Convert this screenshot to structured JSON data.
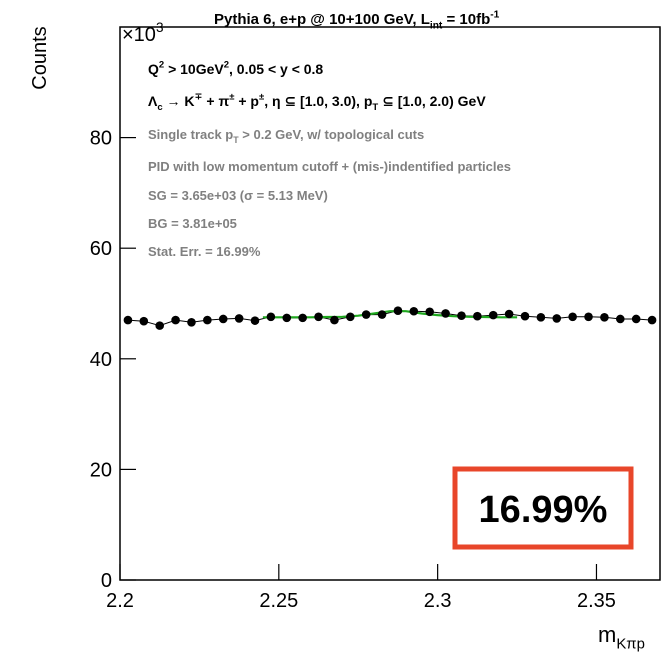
{
  "chart_data": {
    "type": "scatter",
    "title": [
      {
        "text": "Pythia 6, e+p @ 10+100 GeV, L"
      },
      {
        "text": "int",
        "shift": "sub"
      },
      {
        "text": " = 10fb"
      },
      {
        "text": "-1",
        "shift": "sup"
      }
    ],
    "y_exponent": [
      {
        "text": "×10"
      },
      {
        "text": "3",
        "shift": "sup"
      }
    ],
    "ylabel": "Counts",
    "xlabel": [
      {
        "text": "m"
      },
      {
        "text": "Kπp",
        "shift": "sub"
      }
    ],
    "annotations": [
      {
        "color": "#000000",
        "segments": [
          {
            "text": "Q"
          },
          {
            "text": "2",
            "shift": "sup"
          },
          {
            "text": " > 10GeV"
          },
          {
            "text": "2",
            "shift": "sup"
          },
          {
            "text": ", 0.05 < y < 0.8"
          }
        ]
      },
      {
        "color": "#000000",
        "segments": [
          {
            "text": "Λ"
          },
          {
            "text": "c",
            "shift": "sub"
          },
          {
            "text": " → K"
          },
          {
            "text": "∓",
            "shift": "sup"
          },
          {
            "text": " + π"
          },
          {
            "text": "±",
            "shift": "sup"
          },
          {
            "text": " + p"
          },
          {
            "text": "±",
            "shift": "sup"
          },
          {
            "text": ", η ⊆ [1.0, 3.0), p"
          },
          {
            "text": "T",
            "shift": "sub"
          },
          {
            "text": " ⊆ [1.0, 2.0) GeV"
          }
        ]
      },
      {
        "color": "#808080",
        "segments": [
          {
            "text": "Single track p"
          },
          {
            "text": "T",
            "shift": "sub"
          },
          {
            "text": " > 0.2 GeV, w/ topological cuts"
          }
        ]
      },
      {
        "color": "#808080",
        "segments": [
          {
            "text": "PID with low momentum cutoff + (mis-)indentified particles"
          }
        ]
      },
      {
        "color": "#808080",
        "segments": [
          {
            "text": "SG = 3.65e+03 (σ = 5.13 MeV)"
          }
        ]
      },
      {
        "color": "#808080",
        "segments": [
          {
            "text": "BG = 3.81e+05"
          }
        ]
      },
      {
        "color": "#808080",
        "segments": [
          {
            "text": "Stat. Err. = 16.99%"
          }
        ]
      }
    ],
    "highlight": {
      "text": "16.99%",
      "color": "#e8462a"
    },
    "color": "#000000",
    "x": [
      2.2025,
      2.2075,
      2.2125,
      2.2175,
      2.2225,
      2.2275,
      2.2325,
      2.2375,
      2.2425,
      2.2475,
      2.2525,
      2.2575,
      2.2625,
      2.2675,
      2.2725,
      2.2775,
      2.2825,
      2.2875,
      2.2925,
      2.2975,
      2.3025,
      2.3075,
      2.3125,
      2.3175,
      2.3225,
      2.3275,
      2.3325,
      2.3375,
      2.3425,
      2.3475,
      2.3525,
      2.3575,
      2.3625,
      2.3675
    ],
    "values": [
      47.0,
      46.8,
      46.0,
      47.0,
      46.6,
      47.0,
      47.2,
      47.3,
      46.9,
      47.6,
      47.4,
      47.4,
      47.6,
      47.0,
      47.6,
      48.0,
      48.0,
      48.7,
      48.6,
      48.5,
      48.2,
      47.8,
      47.7,
      47.9,
      48.1,
      47.7,
      47.5,
      47.3,
      47.6,
      47.6,
      47.5,
      47.2,
      47.2,
      47.0
    ],
    "fit": {
      "color": "#1fa81f",
      "x": [
        2.245,
        2.25,
        2.255,
        2.26,
        2.265,
        2.27,
        2.275,
        2.28,
        2.285,
        2.29,
        2.295,
        2.3,
        2.305,
        2.31,
        2.315,
        2.32,
        2.325
      ],
      "values": [
        47.5,
        47.5,
        47.5,
        47.5,
        47.55,
        47.6,
        47.8,
        48.2,
        48.6,
        48.6,
        48.2,
        47.9,
        47.7,
        47.6,
        47.55,
        47.5,
        47.5
      ]
    },
    "xlim": [
      2.2,
      2.37
    ],
    "ylim": [
      0,
      100
    ],
    "xticks": [
      2.2,
      2.25,
      2.3,
      2.35
    ],
    "yticks": [
      0,
      20,
      40,
      60,
      80
    ]
  }
}
